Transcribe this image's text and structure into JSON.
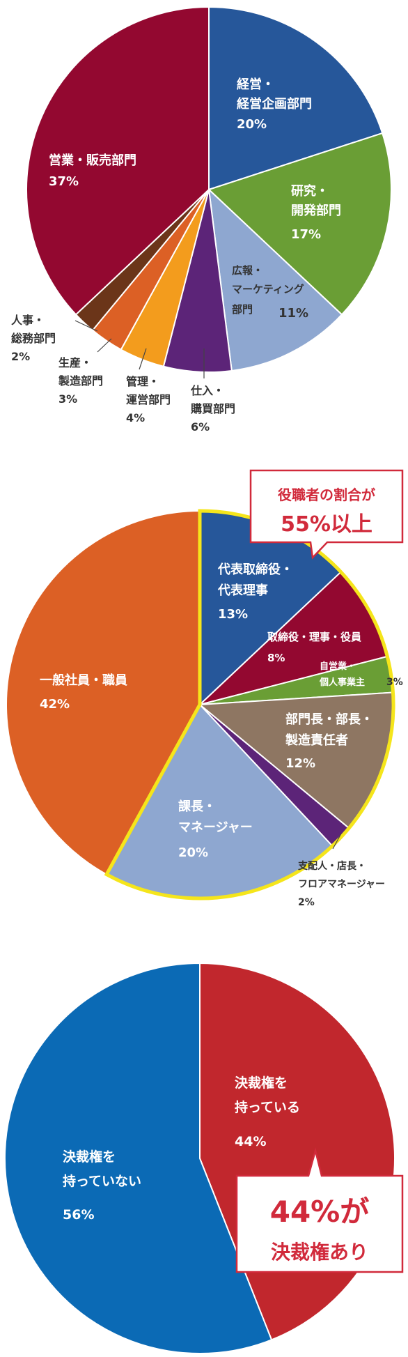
{
  "chart_data": [
    {
      "type": "pie",
      "title": "",
      "slices": [
        {
          "name": "経営・経営企画部門",
          "label_lines": [
            "経営・",
            "経営企画部門"
          ],
          "pct_label": "20%",
          "value": 20,
          "color": "#26579a"
        },
        {
          "name": "研究・開発部門",
          "label_lines": [
            "研究・",
            "開発部門"
          ],
          "pct_label": "17%",
          "value": 17,
          "color": "#6a9e35"
        },
        {
          "name": "広報・マーケティング部門",
          "label_lines": [
            "広報・",
            "マーケティング",
            "部門"
          ],
          "pct_label": "11%",
          "value": 11,
          "color": "#8ea7d0"
        },
        {
          "name": "仕入・購買部門",
          "label_lines": [
            "仕入・",
            "購買部門"
          ],
          "pct_label": "6%",
          "value": 6,
          "color": "#5c2478"
        },
        {
          "name": "管理・運営部門",
          "label_lines": [
            "管理・",
            "運営部門"
          ],
          "pct_label": "4%",
          "value": 4,
          "color": "#f39c1d"
        },
        {
          "name": "生産・製造部門",
          "label_lines": [
            "生産・",
            "製造部門"
          ],
          "pct_label": "3%",
          "value": 3,
          "color": "#dc6025"
        },
        {
          "name": "人事・総務部門",
          "label_lines": [
            "人事・",
            "総務部門"
          ],
          "pct_label": "2%",
          "value": 2,
          "color": "#6b3519"
        },
        {
          "name": "営業・販売部門",
          "label_lines": [
            "営業・販売部門"
          ],
          "pct_label": "37%",
          "value": 37,
          "color": "#930830"
        }
      ]
    },
    {
      "type": "pie",
      "title": "",
      "slices": [
        {
          "name": "代表取締役・代表理事",
          "label_lines": [
            "代表取締役・",
            "代表理事"
          ],
          "pct_label": "13%",
          "value": 13,
          "color": "#26579a"
        },
        {
          "name": "取締役・理事・役員",
          "label_lines": [
            "取締役・理事・役員"
          ],
          "pct_label": "8%",
          "value": 8,
          "color": "#930830"
        },
        {
          "name": "自営業・個人事業主",
          "label_lines": [
            "自営業・",
            "個人事業主"
          ],
          "pct_label": "3%",
          "value": 3,
          "color": "#6a9e35"
        },
        {
          "name": "部門長・部長・製造責任者",
          "label_lines": [
            "部門長・部長・",
            "製造責任者"
          ],
          "pct_label": "12%",
          "value": 12,
          "color": "#8e7662"
        },
        {
          "name": "支配人・店長・フロアマネージャー",
          "label_lines": [
            "支配人・店長・",
            "フロアマネージャー"
          ],
          "pct_label": "2%",
          "value": 2,
          "color": "#5c2478"
        },
        {
          "name": "課長・マネージャー",
          "label_lines": [
            "課長・",
            "マネージャー"
          ],
          "pct_label": "20%",
          "value": 20,
          "color": "#8ea7d0"
        },
        {
          "name": "一般社員・職員",
          "label_lines": [
            "一般社員・職員"
          ],
          "pct_label": "42%",
          "value": 42,
          "color": "#dc6025"
        }
      ],
      "callout": {
        "line1": "役職者の割合が",
        "line2": "55%以上"
      }
    },
    {
      "type": "pie",
      "title": "",
      "slices": [
        {
          "name": "決裁権を持っている",
          "label_lines": [
            "決裁権を",
            "持っている"
          ],
          "pct_label": "44%",
          "value": 44,
          "color": "#c1272d"
        },
        {
          "name": "決裁権を持っていない",
          "label_lines": [
            "決裁権を",
            "持っていない"
          ],
          "pct_label": "56%",
          "value": 56,
          "color": "#0b6ab5"
        }
      ],
      "callout": {
        "line1": "44%が",
        "line2": "決裁権あり"
      }
    }
  ]
}
